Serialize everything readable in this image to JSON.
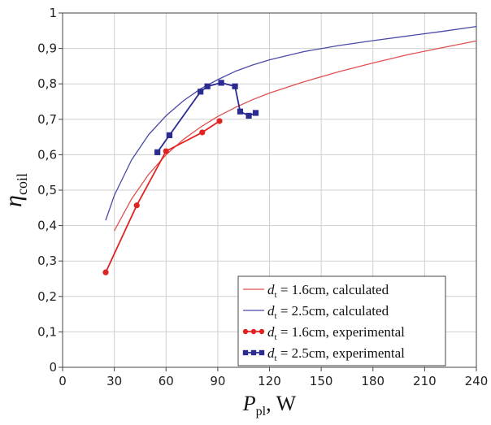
{
  "chart_data": {
    "type": "line",
    "title": "",
    "xlabel": {
      "main": "P",
      "sub": "pl",
      "unit": ", W"
    },
    "ylabel": {
      "main": "η",
      "sub": "coil"
    },
    "xlim": [
      0,
      240
    ],
    "ylim": [
      0,
      1
    ],
    "xticks": [
      0,
      30,
      60,
      90,
      120,
      150,
      180,
      210,
      240
    ],
    "xtick_labels": [
      "0",
      "30",
      "60",
      "90",
      "120",
      "150",
      "180",
      "210",
      "240"
    ],
    "yticks": [
      0,
      0.1,
      0.2,
      0.3,
      0.4,
      0.5,
      0.6,
      0.7,
      0.8,
      0.9,
      1
    ],
    "ytick_labels": [
      "0",
      "0,1",
      "0,2",
      "0,3",
      "0,4",
      "0,5",
      "0,6",
      "0,7",
      "0,8",
      "0,9",
      "1"
    ],
    "grid": true,
    "legend_position": "bottom-right",
    "series": [
      {
        "name": "dt = 1.6cm, calculated",
        "legend": {
          "var": "d",
          "sub": "t",
          "text": " = 1.6cm, calculated"
        },
        "color": "#e05050",
        "style": "line",
        "x": [
          30,
          40,
          50,
          60,
          70,
          80,
          90,
          100,
          110,
          120,
          140,
          160,
          180,
          200,
          220,
          240
        ],
        "y": [
          0.385,
          0.475,
          0.545,
          0.6,
          0.643,
          0.678,
          0.708,
          0.733,
          0.755,
          0.774,
          0.806,
          0.834,
          0.859,
          0.882,
          0.902,
          0.921
        ]
      },
      {
        "name": "dt = 2.5cm, calculated",
        "legend": {
          "var": "d",
          "sub": "t",
          "text": " = 2.5cm, calculated"
        },
        "color": "#4a4aa8",
        "style": "line",
        "x": [
          25,
          30,
          40,
          50,
          60,
          70,
          80,
          90,
          100,
          110,
          120,
          140,
          160,
          180,
          200,
          220,
          240
        ],
        "y": [
          0.415,
          0.485,
          0.585,
          0.657,
          0.71,
          0.752,
          0.786,
          0.812,
          0.835,
          0.853,
          0.868,
          0.891,
          0.908,
          0.922,
          0.935,
          0.948,
          0.962
        ]
      },
      {
        "name": "dt = 1.6cm, experimental",
        "legend": {
          "var": "d",
          "sub": "t",
          "text": " = 1.6cm, experimental"
        },
        "color": "#e02424",
        "style": "line-circle",
        "x": [
          25,
          43,
          60,
          81,
          91
        ],
        "y": [
          0.268,
          0.457,
          0.61,
          0.663,
          0.695
        ]
      },
      {
        "name": "dt = 2.5cm, experimental",
        "legend": {
          "var": "d",
          "sub": "t",
          "text": " = 2.5cm, experimental"
        },
        "color": "#2b2b90",
        "style": "line-square",
        "x": [
          55,
          62,
          80,
          84,
          92,
          100,
          103,
          108,
          112
        ],
        "y": [
          0.607,
          0.655,
          0.778,
          0.793,
          0.803,
          0.793,
          0.722,
          0.71,
          0.718
        ]
      }
    ]
  }
}
